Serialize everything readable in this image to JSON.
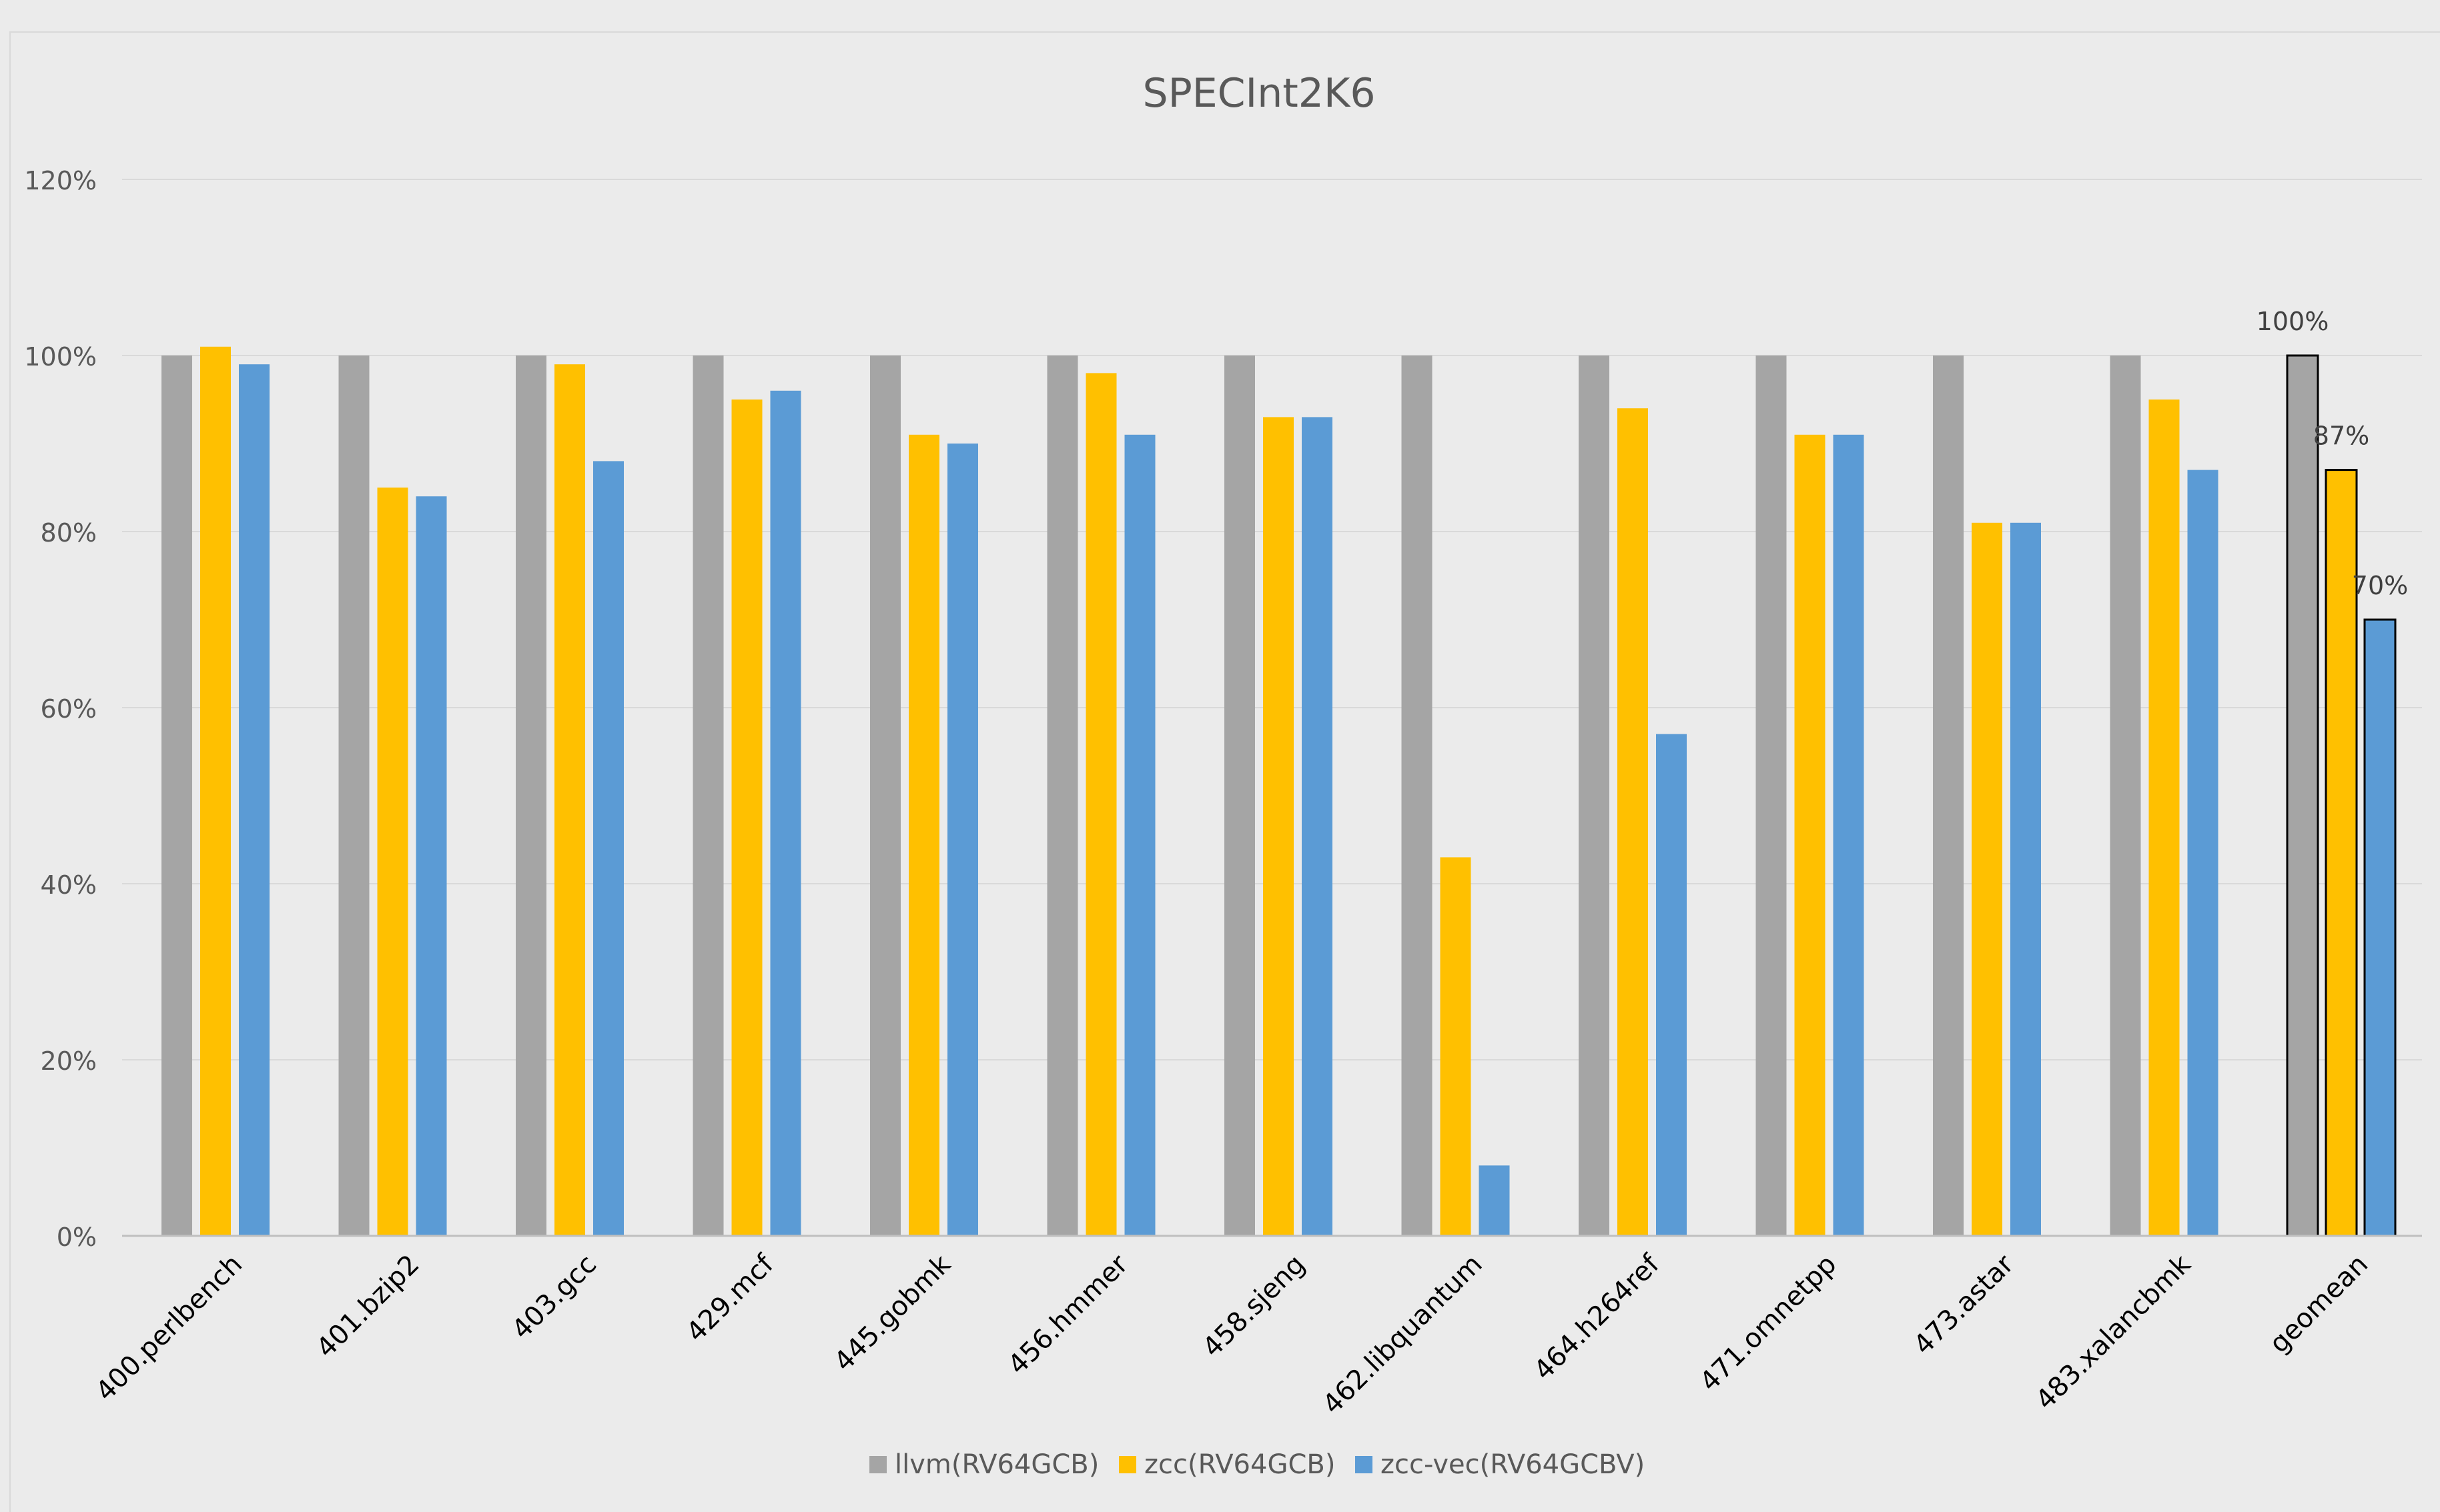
{
  "chart_data": {
    "type": "bar",
    "title": "SPECInt2K6",
    "xlabel": "",
    "ylabel": "",
    "ylim": [
      0,
      120
    ],
    "y_ticks": [
      0,
      20,
      40,
      60,
      80,
      100,
      120
    ],
    "y_tick_labels": [
      "0%",
      "20%",
      "40%",
      "60%",
      "80%",
      "100%",
      "120%"
    ],
    "grid": true,
    "legend_position": "bottom",
    "categories": [
      "400.perlbench",
      "401.bzip2",
      "403.gcc",
      "429.mcf",
      "445.gobmk",
      "456.hmmer",
      "458.sjeng",
      "462.libquantum",
      "464.h264ref",
      "471.omnetpp",
      "473.astar",
      "483.xalancbmk",
      "geomean"
    ],
    "series": [
      {
        "name": "llvm(RV64GCB)",
        "color": "#a5a5a5",
        "values": [
          100,
          100,
          100,
          100,
          100,
          100,
          100,
          100,
          100,
          100,
          100,
          100,
          100
        ]
      },
      {
        "name": "zcc(RV64GCB)",
        "color": "#ffc000",
        "values": [
          101,
          85,
          99,
          95,
          91,
          98,
          93,
          43,
          94,
          91,
          81,
          95,
          87
        ]
      },
      {
        "name": "zcc-vec(RV64GCBV)",
        "color": "#5b9bd5",
        "values": [
          99,
          84,
          88,
          96,
          90,
          91,
          93,
          8,
          57,
          91,
          81,
          87,
          70
        ]
      }
    ],
    "data_labels": [
      "100%",
      "87%",
      "70%"
    ],
    "outlined_category": "geomean"
  },
  "colors": {
    "background": "#ebebeb",
    "grid": "#d9d9d9",
    "text": "#595959",
    "axis": "#bfbfbf"
  }
}
